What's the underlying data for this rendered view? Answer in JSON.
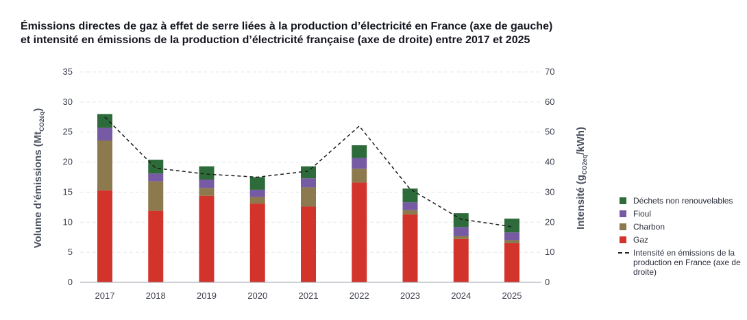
{
  "title": {
    "line1": "Émissions directes de gaz à effet de serre liées à la production d’électricité en France (axe de gauche)",
    "line2": "et intensité en émissions de la production d’électricité française (axe de droite) entre 2017 et 2025"
  },
  "colors": {
    "gaz": "#d2342c",
    "charbon": "#8c7a4e",
    "fioul": "#765aa3",
    "dechets": "#2e6b3a",
    "intensite": "#1a1a1a"
  },
  "chart_data": {
    "type": "bar",
    "stacked": true,
    "categories": [
      "2017",
      "2018",
      "2019",
      "2020",
      "2021",
      "2022",
      "2023",
      "2024",
      "2025"
    ],
    "series": [
      {
        "name": "Gaz",
        "key": "gaz",
        "values": [
          15.3,
          11.9,
          14.4,
          13.1,
          12.6,
          16.6,
          11.3,
          7.2,
          6.5
        ]
      },
      {
        "name": "Charbon",
        "key": "charbon",
        "values": [
          8.3,
          4.9,
          1.3,
          1.1,
          3.2,
          2.3,
          0.7,
          0.5,
          0.5
        ]
      },
      {
        "name": "Fioul",
        "key": "fioul",
        "values": [
          2.1,
          1.3,
          1.4,
          1.2,
          1.5,
          1.8,
          1.3,
          1.5,
          1.3
        ]
      },
      {
        "name": "Déchets non renouvelables",
        "key": "dechets",
        "values": [
          2.3,
          2.3,
          2.2,
          2.1,
          2.0,
          2.1,
          2.3,
          2.3,
          2.3
        ]
      }
    ],
    "line_series": {
      "name": "Intensité en émissions de la production en France (axe de droite)",
      "axis": "right",
      "values": [
        55,
        38,
        36,
        35,
        37,
        52,
        31,
        21,
        18.5
      ]
    },
    "ylabel_left_main": "Volume d’émissions (Mt",
    "ylabel_left_sub": "CO2éq",
    "ylabel_left_end": ")",
    "ylabel_right_main": "Intensité (g",
    "ylabel_right_sub": "CO2eq",
    "ylabel_right_end": "/kWh)",
    "ylim_left": [
      0,
      35
    ],
    "ylim_right": [
      0,
      70
    ],
    "yticks_left": [
      "0",
      "5",
      "10",
      "15",
      "20",
      "25",
      "30",
      "35"
    ],
    "yticks_right": [
      "0",
      "10",
      "20",
      "30",
      "40",
      "50",
      "60",
      "70"
    ],
    "grid": true,
    "legend_position": "right"
  },
  "legend": [
    {
      "key": "dechets",
      "label": "Déchets non renouvelables",
      "kind": "box"
    },
    {
      "key": "fioul",
      "label": "Fioul",
      "kind": "box"
    },
    {
      "key": "charbon",
      "label": "Charbon",
      "kind": "box"
    },
    {
      "key": "gaz",
      "label": "Gaz",
      "kind": "box"
    },
    {
      "key": "intensite",
      "label": "Intensité en émissions de la production en France (axe de droite)",
      "kind": "dash"
    }
  ]
}
